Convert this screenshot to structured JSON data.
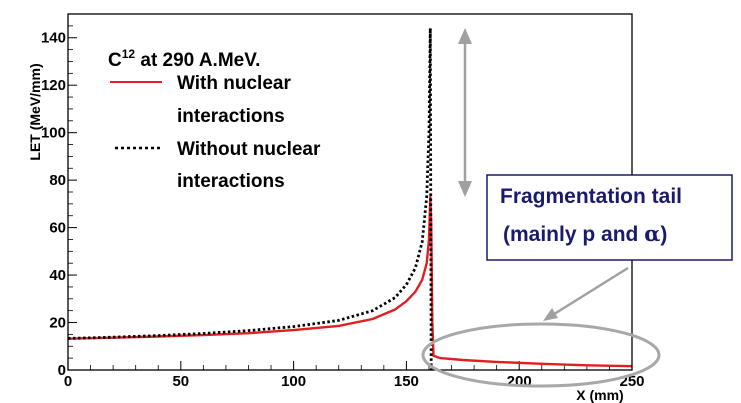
{
  "chart_data": {
    "type": "line",
    "xlabel": "X (mm)",
    "ylabel": "LET (MeV/mm)",
    "xlim": [
      0,
      250
    ],
    "ylim": [
      0,
      150
    ],
    "xticks": [
      "0",
      "50",
      "100",
      "150",
      "200",
      "250"
    ],
    "yticks": [
      "0",
      "20",
      "40",
      "60",
      "80",
      "100",
      "120",
      "140"
    ],
    "grid": false,
    "legend": {
      "placement": "top-left",
      "title_main": "C",
      "title_sup": "12",
      "title_rest": " at 290 A.MeV.",
      "entries": [
        {
          "line1": "With nuclear",
          "line2": "interactions",
          "style": "solid",
          "color": "#e02020"
        },
        {
          "line1": "Without nuclear",
          "line2": "interactions",
          "style": "dotted",
          "color": "#000000"
        }
      ]
    },
    "series": [
      {
        "name": "With nuclear interactions",
        "style": "solid",
        "color": "#e02020",
        "x": [
          0,
          20,
          40,
          60,
          80,
          100,
          120,
          135,
          145,
          150,
          154,
          157,
          159,
          160,
          160.6,
          161,
          161.5,
          162,
          165,
          175,
          190,
          210,
          230,
          250
        ],
        "y": [
          13.2,
          13.6,
          14.1,
          14.7,
          15.5,
          16.8,
          18.6,
          21.5,
          25.5,
          29,
          33,
          38,
          45,
          55,
          73,
          62,
          20,
          6,
          5,
          4.2,
          3.4,
          2.6,
          2.0,
          1.6
        ]
      },
      {
        "name": "Without nuclear interactions",
        "style": "dotted",
        "color": "#000000",
        "x": [
          0,
          20,
          40,
          60,
          80,
          100,
          120,
          135,
          145,
          150,
          154,
          157,
          159,
          160,
          160.6,
          161
        ],
        "y": [
          13.3,
          13.8,
          14.5,
          15.4,
          16.6,
          18.3,
          20.9,
          25,
          30.5,
          36,
          43,
          54,
          73,
          100,
          144,
          0
        ]
      }
    ],
    "annotations": {
      "box_line1": "Fragmentation tail",
      "box_line2_prefix": "(mainly p and ",
      "box_line2_symbol": "α",
      "box_line2_suffix": ")",
      "box_color": "#1a1a6e",
      "arrow_color": "#a0a0a0"
    }
  }
}
